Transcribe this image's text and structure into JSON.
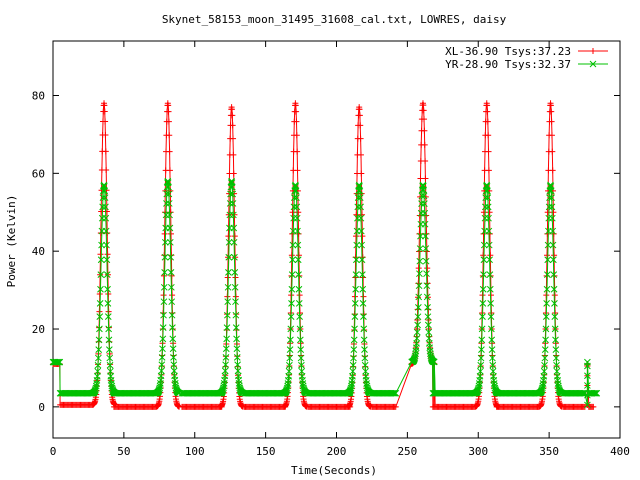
{
  "chart_data": {
    "type": "scatter",
    "title": "Skynet_58153_moon_31495_31608_cal.txt, LOWRES, daisy",
    "xlabel": "Time(Seconds)",
    "ylabel": "Power (Kelvin)",
    "xlim": [
      0,
      400
    ],
    "ylim": [
      -8,
      94
    ],
    "x_ticks": [
      0,
      50,
      100,
      150,
      200,
      250,
      300,
      350,
      400
    ],
    "y_ticks": [
      0,
      20,
      40,
      60,
      80
    ],
    "legend_position": "top-right",
    "grid": false,
    "series": [
      {
        "name": "XL-36.90 Tsys:37.23",
        "color": "#ff0000",
        "marker": "plus",
        "baseline_segments": [
          [
            0,
            5,
            11
          ],
          [
            5,
            29,
            0.5
          ],
          [
            43,
            73,
            0
          ],
          [
            91,
            119,
            0
          ],
          [
            135,
            164,
            0
          ],
          [
            180,
            210,
            0
          ],
          [
            225,
            242,
            0
          ],
          [
            268,
            298,
            0
          ],
          [
            313,
            343,
            0
          ],
          [
            360,
            376,
            0
          ],
          [
            378,
            382,
            0
          ]
        ],
        "peaks": [
          {
            "x": 36,
            "y": 78
          },
          {
            "x": 81,
            "y": 78
          },
          {
            "x": 126,
            "y": 77
          },
          {
            "x": 171,
            "y": 78
          },
          {
            "x": 216,
            "y": 77
          },
          {
            "x": 261,
            "y": 78
          },
          {
            "x": 306,
            "y": 78
          },
          {
            "x": 351,
            "y": 78
          }
        ],
        "endpoints": [
          {
            "x": 377,
            "y": 11
          }
        ]
      },
      {
        "name": "YR-28.90 Tsys:32.37",
        "color": "#00c000",
        "marker": "cross",
        "baseline_segments": [
          [
            0,
            5,
            11.5
          ],
          [
            5,
            29,
            3.5
          ],
          [
            43,
            73,
            3.5
          ],
          [
            91,
            119,
            3.5
          ],
          [
            135,
            164,
            3.5
          ],
          [
            180,
            210,
            3.5
          ],
          [
            225,
            242,
            3.5
          ],
          [
            268,
            298,
            3.5
          ],
          [
            313,
            343,
            3.5
          ],
          [
            360,
            376,
            3.5
          ],
          [
            378,
            384,
            3.5
          ]
        ],
        "peaks": [
          {
            "x": 36,
            "y": 57
          },
          {
            "x": 81,
            "y": 58
          },
          {
            "x": 126,
            "y": 58
          },
          {
            "x": 171,
            "y": 57
          },
          {
            "x": 216,
            "y": 57
          },
          {
            "x": 261,
            "y": 57
          },
          {
            "x": 306,
            "y": 57
          },
          {
            "x": 351,
            "y": 57
          }
        ],
        "endpoints": [
          {
            "x": 377,
            "y": 11.5
          }
        ]
      }
    ]
  }
}
